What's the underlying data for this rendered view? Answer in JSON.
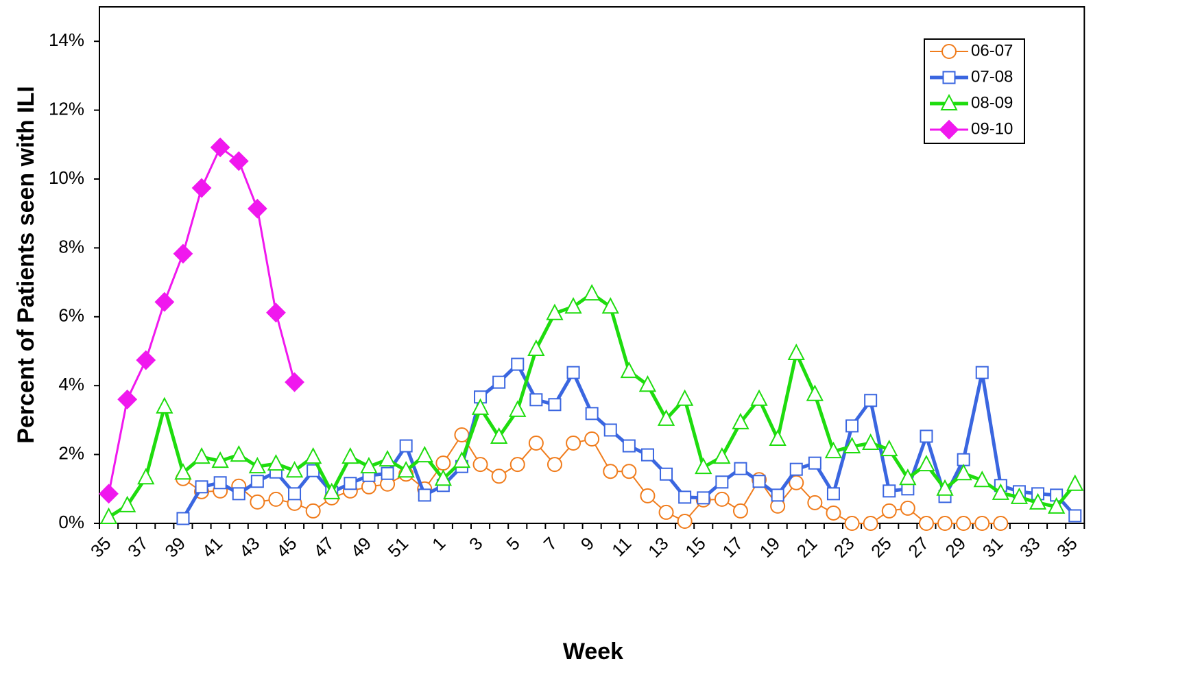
{
  "chart_data": {
    "type": "line",
    "y_label": "Percent of Patients seen with ILI",
    "x_label": "Week",
    "categories": [
      "35",
      null,
      "37",
      null,
      "39",
      null,
      "41",
      null,
      "43",
      null,
      "45",
      null,
      "47",
      null,
      "49",
      null,
      "51",
      null,
      "1",
      null,
      "3",
      null,
      "5",
      null,
      "7",
      null,
      "9",
      null,
      "11",
      null,
      "13",
      null,
      "15",
      null,
      "17",
      null,
      "19",
      null,
      "21",
      null,
      "23",
      null,
      "25",
      null,
      "27",
      null,
      "29",
      null,
      "31",
      null,
      "33",
      null,
      "35"
    ],
    "series": [
      {
        "name": "06-07",
        "color": "#f07c1c",
        "marker": "circle",
        "values": [
          null,
          null,
          null,
          null,
          1.3,
          0.92,
          0.94,
          1.08,
          0.62,
          0.7,
          0.58,
          0.36,
          0.74,
          0.94,
          1.06,
          1.14,
          1.43,
          1.0,
          1.75,
          2.57,
          1.71,
          1.37,
          1.71,
          2.33,
          1.71,
          2.33,
          2.45,
          1.51,
          1.51,
          0.8,
          0.32,
          0.06,
          0.68,
          0.7,
          0.36,
          1.27,
          0.5,
          1.18,
          0.6,
          0.3,
          0,
          0,
          0.36,
          0.44,
          0,
          0,
          0,
          0,
          0,
          null,
          null,
          null,
          null
        ]
      },
      {
        "name": "07-08",
        "color": "#3a66e0",
        "marker": "square",
        "values": [
          null,
          null,
          null,
          null,
          0.14,
          1.06,
          1.18,
          0.86,
          1.22,
          1.49,
          0.86,
          1.53,
          0.9,
          1.16,
          1.39,
          1.45,
          2.25,
          0.82,
          1.1,
          1.65,
          3.67,
          4.1,
          4.62,
          3.59,
          3.45,
          4.38,
          3.19,
          2.71,
          2.25,
          1.99,
          1.43,
          0.76,
          0.74,
          1.2,
          1.59,
          1.22,
          0.82,
          1.57,
          1.75,
          0.86,
          2.83,
          3.57,
          0.94,
          1.0,
          2.53,
          0.78,
          1.85,
          4.38,
          1.1,
          0.92,
          0.86,
          0.82,
          0.22
        ]
      },
      {
        "name": "08-09",
        "color": "#1edc0e",
        "marker": "triangle",
        "values": [
          0.18,
          0.52,
          1.33,
          3.39,
          1.47,
          1.93,
          1.81,
          1.99,
          1.65,
          1.73,
          1.53,
          1.93,
          0.9,
          1.93,
          1.65,
          1.85,
          1.53,
          1.97,
          1.29,
          1.81,
          3.35,
          2.51,
          3.29,
          5.06,
          6.1,
          6.29,
          6.67,
          6.29,
          4.42,
          4.02,
          3.03,
          3.61,
          1.63,
          1.93,
          2.93,
          3.61,
          2.45,
          4.94,
          3.75,
          2.09,
          2.23,
          2.33,
          2.15,
          1.31,
          1.71,
          1.0,
          1.45,
          1.25,
          0.88,
          0.76,
          0.6,
          0.48,
          1.14
        ]
      },
      {
        "name": "09-10",
        "color": "#f018ee",
        "marker": "diamond",
        "values": [
          0.86,
          3.6,
          4.74,
          6.43,
          7.83,
          9.74,
          10.92,
          10.52,
          9.14,
          6.12,
          4.1,
          null,
          null,
          null,
          null,
          null,
          null,
          null,
          null,
          null,
          null,
          null,
          null,
          null,
          null,
          null,
          null,
          null,
          null,
          null,
          null,
          null,
          null,
          null,
          null,
          null,
          null,
          null,
          null,
          null,
          null,
          null,
          null,
          null,
          null,
          null,
          null,
          null,
          null,
          null,
          null,
          null,
          null
        ]
      }
    ],
    "ylim": [
      0,
      15
    ],
    "yticks": [
      {
        "value": 0,
        "label": "0%"
      },
      {
        "value": 2,
        "label": "2%"
      },
      {
        "value": 4,
        "label": "4%"
      },
      {
        "value": 6,
        "label": "6%"
      },
      {
        "value": 8,
        "label": "8%"
      },
      {
        "value": 10,
        "label": "10%"
      },
      {
        "value": 12,
        "label": "12%"
      },
      {
        "value": 14,
        "label": "14%"
      }
    ],
    "grid": false,
    "legend": "top-right"
  }
}
